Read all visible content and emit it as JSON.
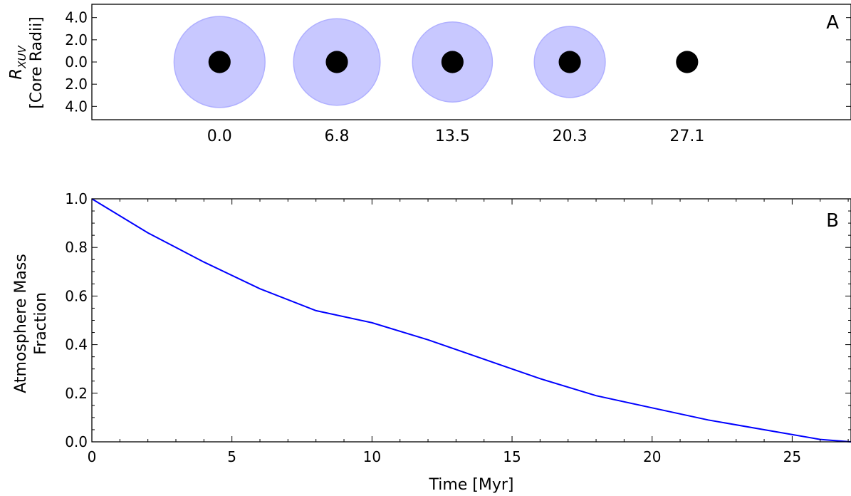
{
  "chart_data": [
    {
      "type": "scatter",
      "panel_label": "A",
      "ylabel_main": "R",
      "ylabel_sub": "XUV",
      "ylabel_line2": "[Core Radii]",
      "yticks": [
        "4.0",
        "2.0",
        "0.0",
        "2.0",
        "4.0"
      ],
      "ylim": [
        -5.2,
        5.2
      ],
      "x_tick_labels": [
        "0.0",
        "6.8",
        "13.5",
        "20.3",
        "27.1"
      ],
      "xlim": [
        -7.4,
        36.6
      ],
      "core_radius": 1.0,
      "core_color": "#000000",
      "envelope_color": "#b0b0ff",
      "points": [
        {
          "time": 0.0,
          "r_xuv": 4.1
        },
        {
          "time": 6.8,
          "r_xuv": 3.9
        },
        {
          "time": 13.5,
          "r_xuv": 3.6
        },
        {
          "time": 20.3,
          "r_xuv": 3.2
        },
        {
          "time": 27.1,
          "r_xuv": 0.0
        }
      ]
    },
    {
      "type": "line",
      "panel_label": "B",
      "xlabel": "Time [Myr]",
      "ylabel_line1": "Atmosphere Mass",
      "ylabel_line2": "Fraction",
      "xlim": [
        0,
        27.1
      ],
      "ylim": [
        0.0,
        1.0
      ],
      "x_tick_labels": [
        "0",
        "5",
        "10",
        "15",
        "20",
        "25"
      ],
      "y_tick_labels": [
        "0.0",
        "0.2",
        "0.4",
        "0.6",
        "0.8",
        "1.0"
      ],
      "line_color": "#0000ff",
      "series": [
        {
          "x": [
            0,
            2,
            4,
            6,
            8,
            10,
            12,
            14,
            16,
            18,
            20,
            22,
            24,
            26,
            27.1
          ],
          "y": [
            1.0,
            0.86,
            0.74,
            0.63,
            0.54,
            0.49,
            0.42,
            0.34,
            0.26,
            0.19,
            0.14,
            0.09,
            0.05,
            0.01,
            0.0
          ]
        }
      ]
    }
  ]
}
